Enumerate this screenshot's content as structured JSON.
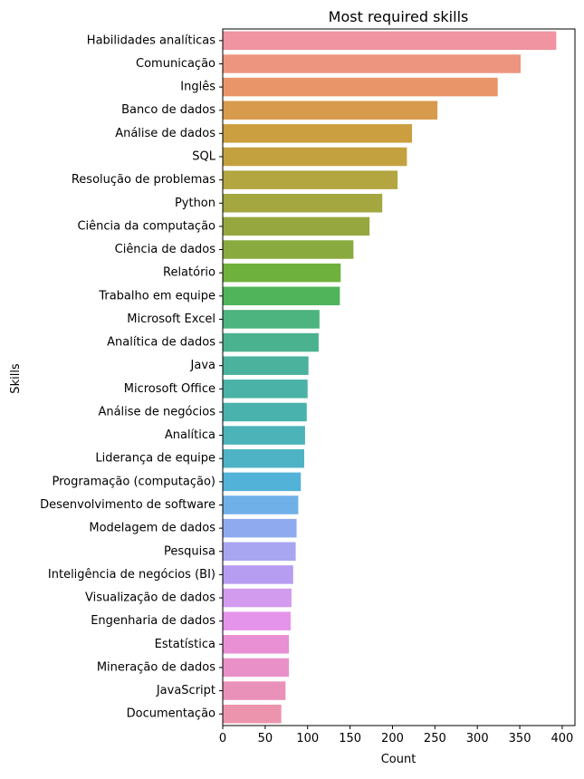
{
  "chart_data": {
    "type": "bar",
    "orientation": "horizontal",
    "title": "Most required skills",
    "xlabel": "Count",
    "ylabel": "Skills",
    "xlim": [
      0,
      415
    ],
    "xticks": [
      0,
      50,
      100,
      150,
      200,
      250,
      300,
      350,
      400
    ],
    "grid": false,
    "categories": [
      "Habilidades analíticas",
      "Comunicação",
      "Inglês",
      "Banco de dados",
      "Análise de dados",
      "SQL",
      "Resolução de problemas",
      "Python",
      "Ciência da computação",
      "Ciência de dados",
      "Relatório",
      "Trabalho em equipe",
      "Microsoft Excel",
      "Analítica de dados",
      "Java",
      "Microsoft Office",
      "Análise de negócios",
      "Analítica",
      "Liderança de equipe",
      "Programação (computação)",
      "Desenvolvimento de software",
      "Modelagem de dados",
      "Pesquisa",
      "Inteligência de negócios (BI)",
      "Visualização de dados",
      "Engenharia de dados",
      "Estatística",
      "Mineração de dados",
      "JavaScript",
      "Documentação"
    ],
    "values": [
      393,
      351,
      324,
      253,
      223,
      217,
      206,
      188,
      173,
      154,
      139,
      138,
      114,
      113,
      101,
      100,
      99,
      97,
      96,
      92,
      89,
      87,
      86,
      83,
      81,
      80,
      78,
      78,
      74,
      69
    ],
    "colors": [
      "#ef94a0",
      "#ee957f",
      "#ea946a",
      "#d89a4c",
      "#cb9e40",
      "#c4a13f",
      "#b3a540",
      "#a4a640",
      "#97a73f",
      "#88aa3f",
      "#6fb13d",
      "#4fb45a",
      "#4db37f",
      "#4bb28f",
      "#4ab29d",
      "#4ab2a6",
      "#4ab2ad",
      "#4cb3b8",
      "#4eb3c5",
      "#52b2d8",
      "#6fb0e8",
      "#90aaef",
      "#a8a6f1",
      "#b79df2",
      "#d39bee",
      "#e594ec",
      "#e98fd3",
      "#e990c8",
      "#ea91ba",
      "#ec94ae"
    ]
  }
}
